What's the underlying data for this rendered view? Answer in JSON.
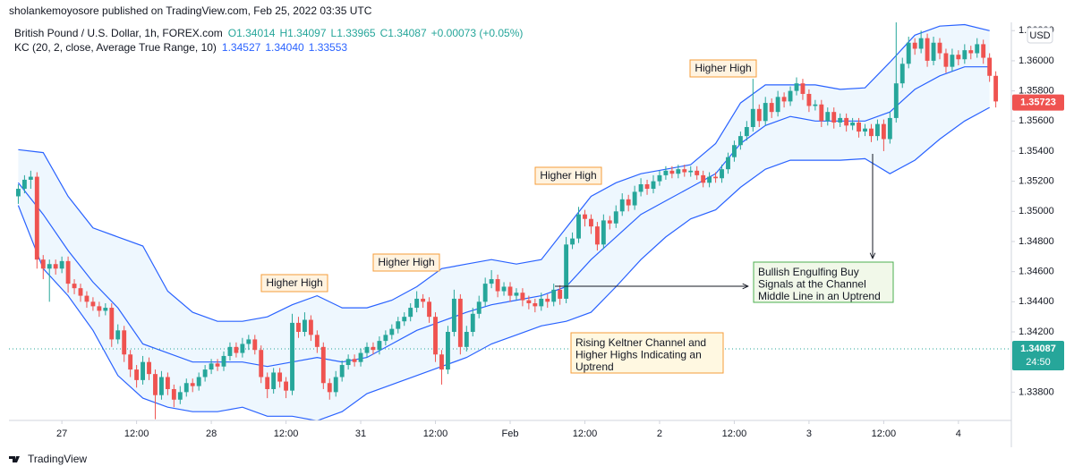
{
  "header": "sholankemoyosore published on TradingView.com, Feb 25, 2022 03:35 UTC",
  "footer": "TradingView",
  "chart_data": {
    "type": "candlestick",
    "instrument": "British Pound / U.S. Dollar, 1h, FOREX.com",
    "ohlc_legend": [
      "O1.34014",
      "H1.34097",
      "L1.33965",
      "C1.34087",
      "+0.00073 (+0.05%)"
    ],
    "currency": "USD",
    "up_color": "#26a69a",
    "down_color": "#ef5350",
    "xlim": [
      -1.5,
      159.5
    ],
    "xticks": [
      {
        "value": 7,
        "label": "27"
      },
      {
        "value": 19,
        "label": "12:00"
      },
      {
        "value": 31,
        "label": "28"
      },
      {
        "value": 43,
        "label": "12:00"
      },
      {
        "value": 55,
        "label": "31"
      },
      {
        "value": 67,
        "label": "12:00"
      },
      {
        "value": 79,
        "label": "Feb"
      },
      {
        "value": 91,
        "label": "12:00"
      },
      {
        "value": 103,
        "label": "2"
      },
      {
        "value": 115,
        "label": "12:00"
      },
      {
        "value": 127,
        "label": "3"
      },
      {
        "value": 139,
        "label": "12:00"
      },
      {
        "value": 151,
        "label": "4"
      }
    ],
    "ylim": [
      1.33612,
      1.36255
    ],
    "yticks": [
      {
        "value": 1.362,
        "label": "1.36200"
      },
      {
        "value": 1.36,
        "label": "1.36000"
      },
      {
        "value": 1.358,
        "label": "1.35800"
      },
      {
        "value": 1.356,
        "label": "1.35600"
      },
      {
        "value": 1.354,
        "label": "1.35400"
      },
      {
        "value": 1.352,
        "label": "1.35200"
      },
      {
        "value": 1.35,
        "label": "1.35000"
      },
      {
        "value": 1.348,
        "label": "1.34800"
      },
      {
        "value": 1.346,
        "label": "1.34600"
      },
      {
        "value": 1.344,
        "label": "1.34400"
      },
      {
        "value": 1.342,
        "label": "1.34200"
      },
      {
        "value": 1.338,
        "label": "1.33800"
      }
    ],
    "last_price": {
      "value": 1.35723,
      "label": "1.35723",
      "color": "#ef5350"
    },
    "current_price": {
      "value": 1.34087,
      "label": "1.34087",
      "countdown": "24:50",
      "color": "#26a69a"
    },
    "keltner": {
      "label": "KC (20, 2, close, Average True Range, 10)",
      "legend_values": [
        "1.34527",
        "1.34040",
        "1.33553"
      ],
      "color": "#2962ff",
      "x": [
        0,
        4,
        8,
        12,
        16,
        20,
        24,
        28,
        32,
        36,
        40,
        44,
        48,
        52,
        56,
        60,
        64,
        68,
        72,
        76,
        80,
        84,
        88,
        92,
        96,
        100,
        104,
        108,
        112,
        116,
        120,
        124,
        128,
        132,
        136,
        140,
        144,
        148,
        152,
        156
      ],
      "upper": [
        1.3541,
        1.3539,
        1.351,
        1.3489,
        1.3483,
        1.3477,
        1.3447,
        1.3433,
        1.3427,
        1.3427,
        1.343,
        1.3438,
        1.3444,
        1.3436,
        1.3436,
        1.3441,
        1.345,
        1.3462,
        1.3465,
        1.3468,
        1.3465,
        1.3468,
        1.3489,
        1.351,
        1.3519,
        1.3525,
        1.3528,
        1.3531,
        1.3545,
        1.3572,
        1.3584,
        1.3584,
        1.3584,
        1.3581,
        1.3582,
        1.3599,
        1.3617,
        1.3623,
        1.3624,
        1.362
      ],
      "middle": [
        1.3519,
        1.3498,
        1.3474,
        1.3453,
        1.3436,
        1.3412,
        1.3406,
        1.34,
        1.34,
        1.34,
        1.3397,
        1.34,
        1.3403,
        1.34,
        1.3403,
        1.3412,
        1.3421,
        1.3427,
        1.3433,
        1.3438,
        1.3441,
        1.3444,
        1.345,
        1.3468,
        1.3483,
        1.3498,
        1.3507,
        1.3516,
        1.3525,
        1.3545,
        1.3557,
        1.3563,
        1.356,
        1.356,
        1.356,
        1.3566,
        1.3581,
        1.359,
        1.3596,
        1.3596
      ],
      "lower": [
        1.3504,
        1.3462,
        1.3444,
        1.3421,
        1.3391,
        1.3376,
        1.337,
        1.3367,
        1.3367,
        1.337,
        1.3364,
        1.3364,
        1.3361,
        1.3367,
        1.3379,
        1.3385,
        1.3391,
        1.3397,
        1.3403,
        1.3412,
        1.3418,
        1.3424,
        1.3427,
        1.3433,
        1.345,
        1.3468,
        1.3483,
        1.3495,
        1.3501,
        1.3516,
        1.3528,
        1.3534,
        1.3534,
        1.3534,
        1.3535,
        1.3525,
        1.3534,
        1.3548,
        1.356,
        1.3569
      ]
    },
    "candles": [
      [
        1.351,
        1.3518,
        1.3505,
        1.3515
      ],
      [
        1.3515,
        1.3524,
        1.3512,
        1.3521
      ],
      [
        1.3521,
        1.3527,
        1.3515,
        1.3523
      ],
      [
        1.3523,
        1.3526,
        1.3462,
        1.3468
      ],
      [
        1.3468,
        1.3471,
        1.3455,
        1.3462
      ],
      [
        1.3462,
        1.3468,
        1.344,
        1.3465
      ],
      [
        1.3465,
        1.3468,
        1.3458,
        1.3462
      ],
      [
        1.3462,
        1.347,
        1.3459,
        1.3467
      ],
      [
        1.3467,
        1.347,
        1.3446,
        1.3452
      ],
      [
        1.3452,
        1.3455,
        1.3445,
        1.3449
      ],
      [
        1.3449,
        1.3452,
        1.344,
        1.3444
      ],
      [
        1.3444,
        1.3447,
        1.3436,
        1.344
      ],
      [
        1.344,
        1.3443,
        1.3434,
        1.3437
      ],
      [
        1.3437,
        1.344,
        1.343,
        1.3434
      ],
      [
        1.3434,
        1.3439,
        1.3431,
        1.3436
      ],
      [
        1.3436,
        1.3439,
        1.341,
        1.3415
      ],
      [
        1.3415,
        1.3425,
        1.3412,
        1.3421
      ],
      [
        1.3421,
        1.3424,
        1.34,
        1.3405
      ],
      [
        1.3405,
        1.3408,
        1.339,
        1.3395
      ],
      [
        1.3395,
        1.3398,
        1.3383,
        1.3388
      ],
      [
        1.3388,
        1.3404,
        1.3385,
        1.34
      ],
      [
        1.34,
        1.3403,
        1.3388,
        1.3392
      ],
      [
        1.3392,
        1.3395,
        1.3362,
        1.3378
      ],
      [
        1.3378,
        1.3394,
        1.3375,
        1.339
      ],
      [
        1.339,
        1.3393,
        1.3378,
        1.3382
      ],
      [
        1.3382,
        1.3385,
        1.337,
        1.3375
      ],
      [
        1.3375,
        1.3384,
        1.3372,
        1.338
      ],
      [
        1.338,
        1.3389,
        1.3377,
        1.3386
      ],
      [
        1.3386,
        1.3389,
        1.338,
        1.3384
      ],
      [
        1.3384,
        1.3393,
        1.3381,
        1.339
      ],
      [
        1.339,
        1.3398,
        1.3387,
        1.3395
      ],
      [
        1.3395,
        1.3402,
        1.3392,
        1.3399
      ],
      [
        1.3399,
        1.3402,
        1.3394,
        1.3397
      ],
      [
        1.3397,
        1.3407,
        1.3394,
        1.3404
      ],
      [
        1.3404,
        1.3413,
        1.3401,
        1.341
      ],
      [
        1.341,
        1.3413,
        1.3403,
        1.3406
      ],
      [
        1.3406,
        1.3416,
        1.3403,
        1.3412
      ],
      [
        1.3412,
        1.3418,
        1.3408,
        1.3415
      ],
      [
        1.3415,
        1.3418,
        1.3405,
        1.3408
      ],
      [
        1.3408,
        1.3411,
        1.3386,
        1.339
      ],
      [
        1.339,
        1.3393,
        1.3376,
        1.3382
      ],
      [
        1.3382,
        1.3396,
        1.3379,
        1.3393
      ],
      [
        1.3393,
        1.3396,
        1.3383,
        1.3387
      ],
      [
        1.3387,
        1.339,
        1.3376,
        1.3381
      ],
      [
        1.3381,
        1.3432,
        1.3378,
        1.3426
      ],
      [
        1.3426,
        1.343,
        1.3416,
        1.342
      ],
      [
        1.342,
        1.3433,
        1.3417,
        1.3428
      ],
      [
        1.3428,
        1.3431,
        1.3414,
        1.3418
      ],
      [
        1.3418,
        1.3421,
        1.3406,
        1.341
      ],
      [
        1.341,
        1.3413,
        1.3382,
        1.3386
      ],
      [
        1.3386,
        1.3389,
        1.3375,
        1.338
      ],
      [
        1.338,
        1.3394,
        1.3377,
        1.339
      ],
      [
        1.339,
        1.3401,
        1.3387,
        1.3398
      ],
      [
        1.3398,
        1.3405,
        1.3395,
        1.3402
      ],
      [
        1.3402,
        1.3405,
        1.3397,
        1.34
      ],
      [
        1.34,
        1.3409,
        1.3397,
        1.3406
      ],
      [
        1.3406,
        1.3413,
        1.3403,
        1.341
      ],
      [
        1.341,
        1.3413,
        1.3405,
        1.3408
      ],
      [
        1.3408,
        1.3417,
        1.3405,
        1.3414
      ],
      [
        1.3414,
        1.3421,
        1.3411,
        1.3418
      ],
      [
        1.3418,
        1.3425,
        1.3415,
        1.3422
      ],
      [
        1.3422,
        1.343,
        1.3419,
        1.3427
      ],
      [
        1.3427,
        1.3433,
        1.3424,
        1.343
      ],
      [
        1.343,
        1.3439,
        1.3427,
        1.3436
      ],
      [
        1.3436,
        1.3447,
        1.3433,
        1.3442
      ],
      [
        1.3442,
        1.3445,
        1.3436,
        1.344
      ],
      [
        1.344,
        1.3443,
        1.3426,
        1.343
      ],
      [
        1.343,
        1.3433,
        1.34,
        1.3405
      ],
      [
        1.3405,
        1.3408,
        1.3385,
        1.3395
      ],
      [
        1.3395,
        1.3424,
        1.3392,
        1.342
      ],
      [
        1.342,
        1.3448,
        1.3417,
        1.3442
      ],
      [
        1.3442,
        1.3445,
        1.3405,
        1.341
      ],
      [
        1.341,
        1.3424,
        1.3407,
        1.342
      ],
      [
        1.342,
        1.3436,
        1.3417,
        1.3432
      ],
      [
        1.3432,
        1.3444,
        1.3429,
        1.344
      ],
      [
        1.344,
        1.3456,
        1.3437,
        1.3452
      ],
      [
        1.3452,
        1.3461,
        1.3449,
        1.3455
      ],
      [
        1.3455,
        1.3458,
        1.3443,
        1.3447
      ],
      [
        1.3447,
        1.3453,
        1.3444,
        1.345
      ],
      [
        1.345,
        1.3453,
        1.344,
        1.3444
      ],
      [
        1.3444,
        1.3449,
        1.3441,
        1.3446
      ],
      [
        1.3446,
        1.3449,
        1.3437,
        1.3441
      ],
      [
        1.3441,
        1.3444,
        1.3435,
        1.3439
      ],
      [
        1.3439,
        1.3442,
        1.3433,
        1.3437
      ],
      [
        1.3437,
        1.3446,
        1.3434,
        1.3442
      ],
      [
        1.3442,
        1.3445,
        1.3436,
        1.344
      ],
      [
        1.344,
        1.3452,
        1.3437,
        1.3448
      ],
      [
        1.3448,
        1.3451,
        1.3438,
        1.3442
      ],
      [
        1.3442,
        1.3483,
        1.3439,
        1.3478
      ],
      [
        1.3478,
        1.3486,
        1.3475,
        1.3482
      ],
      [
        1.3482,
        1.3503,
        1.3479,
        1.3498
      ],
      [
        1.3498,
        1.3501,
        1.349,
        1.3495
      ],
      [
        1.3495,
        1.3498,
        1.3485,
        1.349
      ],
      [
        1.349,
        1.3493,
        1.3474,
        1.3478
      ],
      [
        1.3478,
        1.3498,
        1.3475,
        1.3494
      ],
      [
        1.3494,
        1.3497,
        1.3488,
        1.3492
      ],
      [
        1.3492,
        1.3504,
        1.3489,
        1.35
      ],
      [
        1.35,
        1.3512,
        1.3497,
        1.3508
      ],
      [
        1.3508,
        1.3511,
        1.35,
        1.3504
      ],
      [
        1.3504,
        1.3517,
        1.3501,
        1.3513
      ],
      [
        1.3513,
        1.3522,
        1.351,
        1.3518
      ],
      [
        1.3518,
        1.3521,
        1.3511,
        1.3515
      ],
      [
        1.3515,
        1.3524,
        1.3512,
        1.352
      ],
      [
        1.352,
        1.3527,
        1.3517,
        1.3524
      ],
      [
        1.3524,
        1.353,
        1.3521,
        1.3527
      ],
      [
        1.3527,
        1.353,
        1.3522,
        1.3525
      ],
      [
        1.3525,
        1.3531,
        1.3522,
        1.3528
      ],
      [
        1.3528,
        1.3531,
        1.3523,
        1.3526
      ],
      [
        1.3526,
        1.353,
        1.3523,
        1.3527
      ],
      [
        1.3527,
        1.353,
        1.3521,
        1.3524
      ],
      [
        1.3524,
        1.3527,
        1.3516,
        1.3519
      ],
      [
        1.3519,
        1.3526,
        1.3516,
        1.3523
      ],
      [
        1.3523,
        1.3526,
        1.3519,
        1.3522
      ],
      [
        1.3522,
        1.3531,
        1.3519,
        1.3528
      ],
      [
        1.3528,
        1.3539,
        1.3525,
        1.3536
      ],
      [
        1.3536,
        1.3547,
        1.3533,
        1.3544
      ],
      [
        1.3544,
        1.3553,
        1.3541,
        1.355
      ],
      [
        1.355,
        1.356,
        1.3547,
        1.3556
      ],
      [
        1.3556,
        1.3588,
        1.3553,
        1.3568
      ],
      [
        1.3568,
        1.3571,
        1.3556,
        1.356
      ],
      [
        1.356,
        1.3576,
        1.3557,
        1.3572
      ],
      [
        1.3572,
        1.3575,
        1.3562,
        1.3566
      ],
      [
        1.3566,
        1.358,
        1.3563,
        1.3576
      ],
      [
        1.3576,
        1.3579,
        1.3569,
        1.3573
      ],
      [
        1.3573,
        1.3583,
        1.357,
        1.358
      ],
      [
        1.358,
        1.3589,
        1.3577,
        1.3585
      ],
      [
        1.3585,
        1.3588,
        1.3574,
        1.3578
      ],
      [
        1.3578,
        1.3581,
        1.3566,
        1.357
      ],
      [
        1.357,
        1.3574,
        1.3567,
        1.3571
      ],
      [
        1.3571,
        1.3574,
        1.3556,
        1.356
      ],
      [
        1.356,
        1.3569,
        1.3557,
        1.3566
      ],
      [
        1.3566,
        1.3569,
        1.3555,
        1.3559
      ],
      [
        1.3559,
        1.3565,
        1.3556,
        1.3562
      ],
      [
        1.3562,
        1.3565,
        1.3553,
        1.3557
      ],
      [
        1.3557,
        1.3562,
        1.3554,
        1.3559
      ],
      [
        1.3559,
        1.3562,
        1.3549,
        1.3553
      ],
      [
        1.3553,
        1.3558,
        1.355,
        1.3555
      ],
      [
        1.3555,
        1.3558,
        1.3546,
        1.355
      ],
      [
        1.355,
        1.3561,
        1.3547,
        1.3558
      ],
      [
        1.3558,
        1.3561,
        1.354,
        1.3548
      ],
      [
        1.3548,
        1.3566,
        1.3545,
        1.3562
      ],
      [
        1.3562,
        1.3626,
        1.3559,
        1.3585
      ],
      [
        1.3585,
        1.3602,
        1.3582,
        1.3598
      ],
      [
        1.3598,
        1.3616,
        1.3595,
        1.3612
      ],
      [
        1.3612,
        1.3615,
        1.3604,
        1.3608
      ],
      [
        1.3608,
        1.362,
        1.3605,
        1.3615
      ],
      [
        1.3615,
        1.3618,
        1.3596,
        1.36
      ],
      [
        1.36,
        1.3616,
        1.3597,
        1.3612
      ],
      [
        1.3612,
        1.3615,
        1.3601,
        1.3605
      ],
      [
        1.3605,
        1.3608,
        1.3592,
        1.3596
      ],
      [
        1.3596,
        1.3608,
        1.3593,
        1.3604
      ],
      [
        1.3604,
        1.3607,
        1.3597,
        1.3601
      ],
      [
        1.3601,
        1.3611,
        1.3598,
        1.3607
      ],
      [
        1.3607,
        1.361,
        1.3601,
        1.3605
      ],
      [
        1.3605,
        1.3615,
        1.3602,
        1.3611
      ],
      [
        1.3611,
        1.3614,
        1.3598,
        1.3602
      ],
      [
        1.3602,
        1.3605,
        1.3586,
        1.359
      ],
      [
        1.359,
        1.3593,
        1.3569,
        1.3573
      ]
    ],
    "annotations": {
      "higher_highs": [
        "Higher High",
        "Higher High",
        "Higher High",
        "Higher High"
      ],
      "signal_note": [
        "Bullish Engulfing Buy",
        "Signals at the Channel",
        "Middle Line in an Uptrend"
      ],
      "trend_note": [
        "Rising Keltner Channel and",
        "Higher Highs Indicating an",
        "Uptrend"
      ]
    }
  }
}
